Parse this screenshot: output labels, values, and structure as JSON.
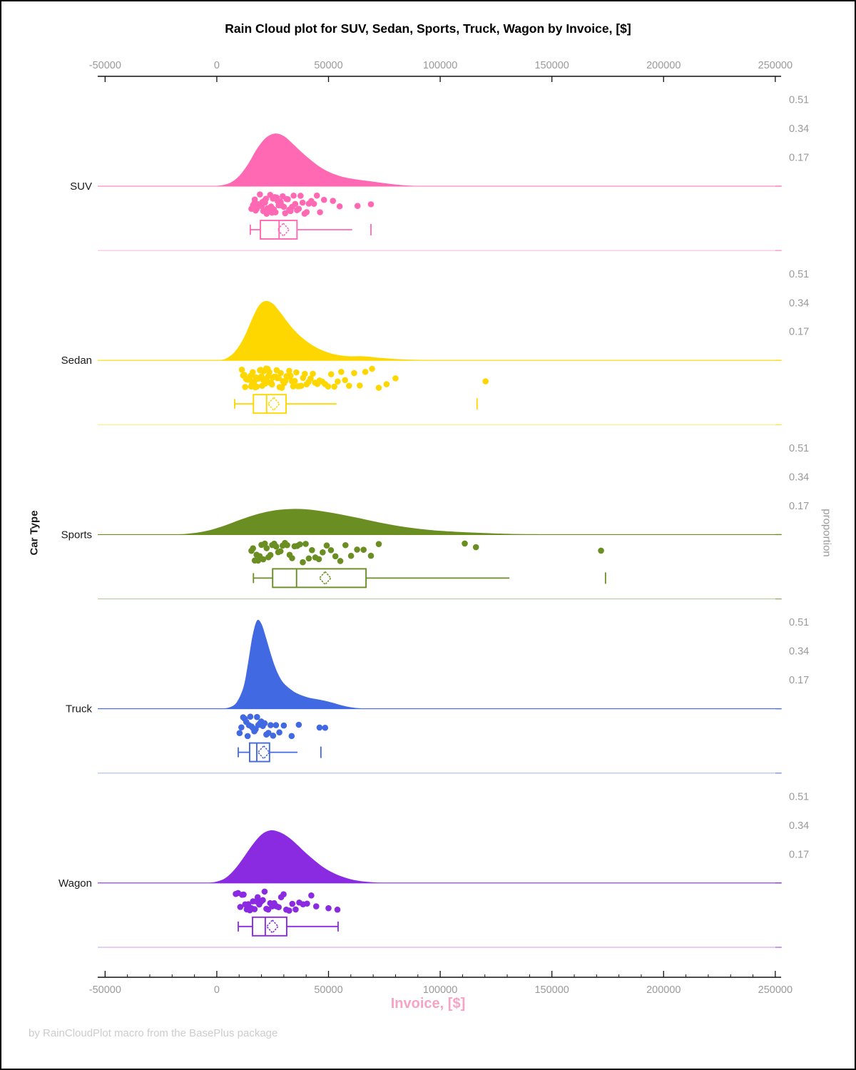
{
  "title": "Rain Cloud plot for SUV, Sedan, Sports, Truck, Wagon by Invoice, [$]",
  "footer": "by RainCloudPlot macro from the BasePlus package",
  "x_axis": {
    "label": "Invoice, [$]",
    "label_color": "#f7a3c3",
    "tick_values": [
      -50000,
      0,
      50000,
      100000,
      150000,
      200000,
      250000
    ],
    "tick_labels": [
      "-50000",
      "0",
      "50000",
      "100000",
      "150000",
      "200000",
      "250000"
    ],
    "minor_tick_step": 10000,
    "range": [
      -53300,
      252600
    ]
  },
  "y_axis_left": {
    "label": "Car Type"
  },
  "y_axis_right": {
    "label": "proportion",
    "tick_values": [
      0.17,
      0.34,
      0.51
    ],
    "tick_labels": [
      "0.17",
      "0.34",
      "0.51"
    ]
  },
  "chart_data": {
    "type": "raincloud",
    "x_unit": "USD",
    "categories": [
      {
        "name": "SUV",
        "color": "#FF69B4",
        "density": [
          [
            -2000,
            0
          ],
          [
            2000,
            0.005
          ],
          [
            6000,
            0.02
          ],
          [
            10000,
            0.06
          ],
          [
            14000,
            0.13
          ],
          [
            18000,
            0.22
          ],
          [
            22000,
            0.285
          ],
          [
            26000,
            0.31
          ],
          [
            30000,
            0.295
          ],
          [
            34000,
            0.25
          ],
          [
            38000,
            0.2
          ],
          [
            42000,
            0.155
          ],
          [
            46000,
            0.115
          ],
          [
            50000,
            0.085
          ],
          [
            55000,
            0.06
          ],
          [
            60000,
            0.045
          ],
          [
            65000,
            0.035
          ],
          [
            70000,
            0.027
          ],
          [
            75000,
            0.018
          ],
          [
            80000,
            0.01
          ],
          [
            85000,
            0.004
          ],
          [
            90000,
            0.001
          ],
          [
            95000,
            0
          ]
        ],
        "points": [
          15500,
          16200,
          16800,
          17000,
          17400,
          17800,
          18200,
          18600,
          19000,
          19300,
          19700,
          20100,
          20400,
          20800,
          21200,
          21600,
          22000,
          22300,
          22700,
          23100,
          23500,
          23900,
          24300,
          24700,
          25100,
          25500,
          25900,
          26300,
          26800,
          27200,
          27700,
          28100,
          28600,
          29000,
          29500,
          30000,
          30600,
          31200,
          31800,
          32400,
          33000,
          33700,
          34400,
          35100,
          35900,
          36700,
          37500,
          38400,
          39300,
          40200,
          41200,
          42300,
          43500,
          44800,
          46200,
          48000,
          52000,
          55000,
          63000,
          69000
        ],
        "box": {
          "min": 15000,
          "q1": 19500,
          "median": 27900,
          "q3": 35900,
          "max": 60600,
          "mean": 29800,
          "outliers": [
            69000
          ]
        }
      },
      {
        "name": "Sedan",
        "color": "#FFD700",
        "density": [
          [
            0,
            0
          ],
          [
            4000,
            0.01
          ],
          [
            8000,
            0.05
          ],
          [
            12000,
            0.13
          ],
          [
            16000,
            0.25
          ],
          [
            19000,
            0.325
          ],
          [
            22000,
            0.35
          ],
          [
            25000,
            0.335
          ],
          [
            28000,
            0.29
          ],
          [
            32000,
            0.22
          ],
          [
            36000,
            0.16
          ],
          [
            40000,
            0.115
          ],
          [
            44000,
            0.08
          ],
          [
            48000,
            0.055
          ],
          [
            52000,
            0.038
          ],
          [
            56000,
            0.028
          ],
          [
            60000,
            0.024
          ],
          [
            64000,
            0.025
          ],
          [
            68000,
            0.022
          ],
          [
            72000,
            0.016
          ],
          [
            78000,
            0.01
          ],
          [
            85000,
            0.005
          ],
          [
            95000,
            0.002
          ],
          [
            110000,
            0.001
          ],
          [
            120000,
            0
          ]
        ],
        "points": [
          11200,
          11800,
          12300,
          12700,
          13100,
          13500,
          13900,
          14300,
          14700,
          15100,
          15400,
          15800,
          16100,
          16500,
          16800,
          17200,
          17500,
          17900,
          18200,
          18600,
          18900,
          19300,
          19600,
          20000,
          20300,
          20700,
          21000,
          21400,
          21700,
          22100,
          22400,
          22800,
          23100,
          23500,
          23900,
          24300,
          24700,
          25100,
          25500,
          25900,
          26300,
          26800,
          27200,
          27700,
          28100,
          28600,
          29100,
          29600,
          30100,
          30700,
          31200,
          31800,
          32400,
          33000,
          33600,
          34200,
          34900,
          35600,
          36300,
          37000,
          37800,
          38600,
          39400,
          40200,
          41100,
          42000,
          43000,
          44000,
          45000,
          46000,
          47200,
          48500,
          49800,
          51200,
          52600,
          54100,
          55700,
          57400,
          59200,
          61500,
          64000,
          66500,
          69500,
          72500,
          76000,
          80000,
          120300
        ],
        "box": {
          "min": 8000,
          "q1": 16400,
          "median": 22300,
          "q3": 31000,
          "max": 53600,
          "mean": 25500,
          "outliers": [
            116500
          ]
        }
      },
      {
        "name": "Sports",
        "color": "#6B8E23",
        "density": [
          [
            -20000,
            0
          ],
          [
            -14000,
            0.004
          ],
          [
            -8000,
            0.013
          ],
          [
            -2000,
            0.03
          ],
          [
            4000,
            0.055
          ],
          [
            10000,
            0.085
          ],
          [
            16000,
            0.112
          ],
          [
            22000,
            0.133
          ],
          [
            28000,
            0.146
          ],
          [
            34000,
            0.151
          ],
          [
            40000,
            0.149
          ],
          [
            46000,
            0.14
          ],
          [
            52000,
            0.127
          ],
          [
            58000,
            0.112
          ],
          [
            64000,
            0.096
          ],
          [
            70000,
            0.079
          ],
          [
            76000,
            0.063
          ],
          [
            82000,
            0.049
          ],
          [
            88000,
            0.038
          ],
          [
            94000,
            0.029
          ],
          [
            100000,
            0.022
          ],
          [
            108000,
            0.016
          ],
          [
            116000,
            0.011
          ],
          [
            124000,
            0.007
          ],
          [
            132000,
            0.004
          ],
          [
            142000,
            0.002
          ],
          [
            152000,
            0.001
          ],
          [
            165000,
            0
          ]
        ],
        "points": [
          15500,
          16200,
          17000,
          17800,
          18500,
          19200,
          20000,
          20800,
          21500,
          22300,
          23100,
          24000,
          24800,
          25700,
          26600,
          27500,
          28500,
          29500,
          30500,
          31500,
          32600,
          33700,
          34800,
          36000,
          37200,
          38500,
          39800,
          41200,
          42600,
          44100,
          45700,
          47400,
          49200,
          51100,
          53100,
          55300,
          57600,
          60100,
          62800,
          65700,
          69000,
          72500,
          111000,
          116000,
          172000
        ],
        "box": {
          "min": 16400,
          "q1": 25000,
          "median": 35700,
          "q3": 66800,
          "max": 131000,
          "mean": 48500,
          "outliers": [
            174000
          ]
        }
      },
      {
        "name": "Truck",
        "color": "#4169E1",
        "density": [
          [
            2000,
            0
          ],
          [
            6000,
            0.01
          ],
          [
            9000,
            0.04
          ],
          [
            12000,
            0.13
          ],
          [
            14000,
            0.27
          ],
          [
            16000,
            0.43
          ],
          [
            18000,
            0.52
          ],
          [
            20000,
            0.5
          ],
          [
            22000,
            0.42
          ],
          [
            24000,
            0.33
          ],
          [
            26000,
            0.25
          ],
          [
            28000,
            0.19
          ],
          [
            30000,
            0.15
          ],
          [
            33000,
            0.115
          ],
          [
            36000,
            0.09
          ],
          [
            40000,
            0.07
          ],
          [
            44000,
            0.058
          ],
          [
            48000,
            0.048
          ],
          [
            52000,
            0.035
          ],
          [
            56000,
            0.02
          ],
          [
            60000,
            0.009
          ],
          [
            64000,
            0.003
          ],
          [
            68000,
            0
          ]
        ],
        "points": [
          10200,
          11000,
          11800,
          12500,
          13200,
          13800,
          14400,
          15000,
          15600,
          16200,
          16800,
          17400,
          18000,
          18600,
          19200,
          19900,
          20600,
          21400,
          22200,
          23100,
          24100,
          25200,
          26500,
          28000,
          30000,
          33500,
          36700,
          46000,
          48500
        ],
        "box": {
          "min": 9600,
          "q1": 14700,
          "median": 17900,
          "q3": 23600,
          "max": 36100,
          "mean": 21000,
          "outliers": [
            46600
          ]
        }
      },
      {
        "name": "Wagon",
        "color": "#8A2BE2",
        "density": [
          [
            -4000,
            0
          ],
          [
            0,
            0.008
          ],
          [
            4000,
            0.03
          ],
          [
            8000,
            0.08
          ],
          [
            12000,
            0.15
          ],
          [
            16000,
            0.225
          ],
          [
            20000,
            0.285
          ],
          [
            24000,
            0.31
          ],
          [
            28000,
            0.3
          ],
          [
            32000,
            0.27
          ],
          [
            36000,
            0.225
          ],
          [
            40000,
            0.175
          ],
          [
            44000,
            0.13
          ],
          [
            48000,
            0.09
          ],
          [
            52000,
            0.06
          ],
          [
            56000,
            0.038
          ],
          [
            60000,
            0.022
          ],
          [
            64000,
            0.012
          ],
          [
            68000,
            0.006
          ],
          [
            72000,
            0.002
          ],
          [
            78000,
            0
          ]
        ],
        "points": [
          8500,
          9500,
          10500,
          11300,
          12000,
          12700,
          13400,
          14100,
          14800,
          15500,
          16200,
          16900,
          17600,
          18300,
          19000,
          19800,
          20600,
          21400,
          22200,
          23000,
          23900,
          24800,
          25700,
          26700,
          27700,
          28800,
          29900,
          31100,
          32400,
          33800,
          35300,
          36900,
          38600,
          40400,
          42300,
          44500,
          50000,
          54000
        ],
        "box": {
          "min": 9600,
          "q1": 16000,
          "median": 21700,
          "q3": 31300,
          "max": 54300,
          "mean": 24900,
          "outliers": []
        }
      }
    ]
  }
}
